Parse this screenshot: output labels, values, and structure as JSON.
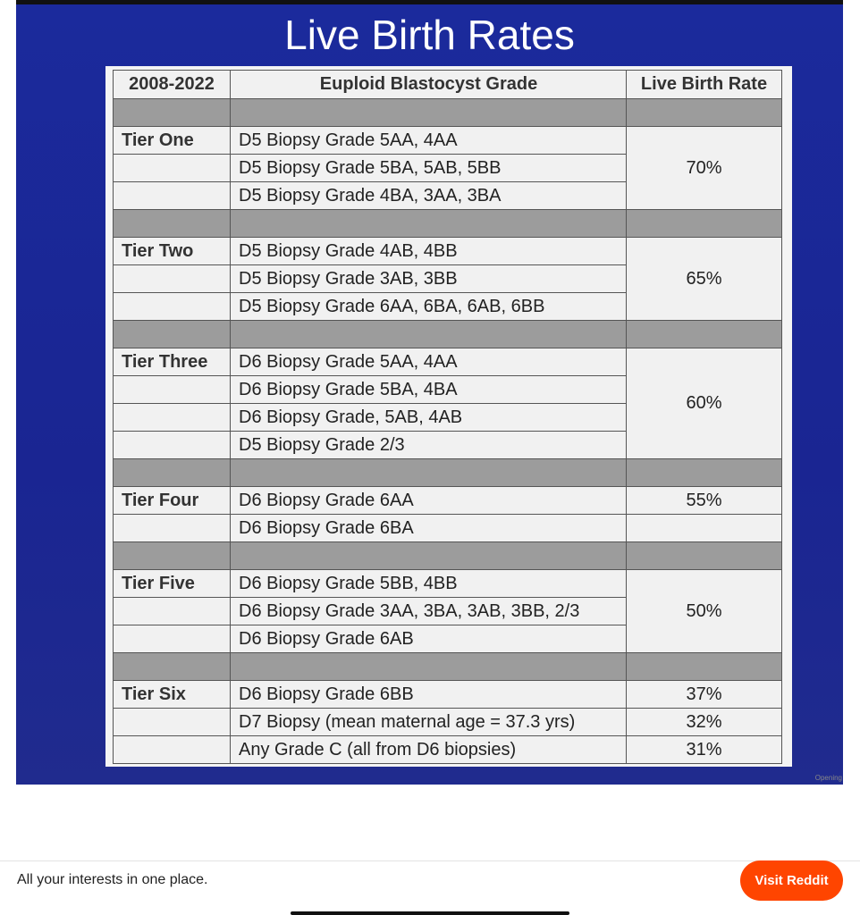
{
  "slide": {
    "title": "Live Birth Rates",
    "corner_text": "Opening"
  },
  "table": {
    "header": [
      "2008-2022",
      "Euploid Blastocyst Grade",
      "Live Birth Rate"
    ],
    "groups": [
      {
        "tier": "Tier One",
        "rate": "70%",
        "rows": [
          {
            "grade": "D5 Biopsy Grade 5AA, 4AA"
          },
          {
            "grade": "D5 Biopsy Grade 5BA, 5AB, 5BB"
          },
          {
            "grade": "D5 Biopsy Grade 4BA, 3AA, 3BA"
          }
        ]
      },
      {
        "tier": "Tier Two",
        "rate": "65%",
        "rows": [
          {
            "grade": "D5 Biopsy Grade 4AB, 4BB"
          },
          {
            "grade": "D5 Biopsy Grade 3AB, 3BB"
          },
          {
            "grade": "D5 Biopsy Grade 6AA, 6BA, 6AB, 6BB"
          }
        ]
      },
      {
        "tier": "Tier Three",
        "rate": "60%",
        "rows": [
          {
            "grade": "D6 Biopsy Grade 5AA, 4AA"
          },
          {
            "grade": "D6 Biopsy Grade 5BA, 4BA"
          },
          {
            "grade": "D6 Biopsy Grade, 5AB, 4AB"
          },
          {
            "grade": "D5 Biopsy Grade 2/3"
          }
        ]
      },
      {
        "tier": "Tier Four",
        "rows": [
          {
            "grade": "D6 Biopsy Grade 6AA",
            "rate": "55%"
          },
          {
            "grade": "D6 Biopsy Grade 6BA"
          }
        ]
      },
      {
        "tier": "Tier Five",
        "rate": "50%",
        "rows": [
          {
            "grade": "D6 Biopsy Grade 5BB, 4BB"
          },
          {
            "grade": "D6 Biopsy Grade 3AA, 3BA, 3AB, 3BB, 2/3"
          },
          {
            "grade": "D6 Biopsy Grade 6AB"
          }
        ]
      },
      {
        "tier": "Tier Six",
        "rows": [
          {
            "grade": "D6 Biopsy Grade 6BB",
            "rate": "37%"
          },
          {
            "grade": "D7 Biopsy (mean maternal age = 37.3 yrs)",
            "rate": "32%"
          },
          {
            "grade": "Any Grade C (all from D6 biopsies)",
            "rate": "31%"
          }
        ]
      }
    ]
  },
  "footer": {
    "tagline": "All your interests in one place.",
    "button": "Visit Reddit"
  }
}
